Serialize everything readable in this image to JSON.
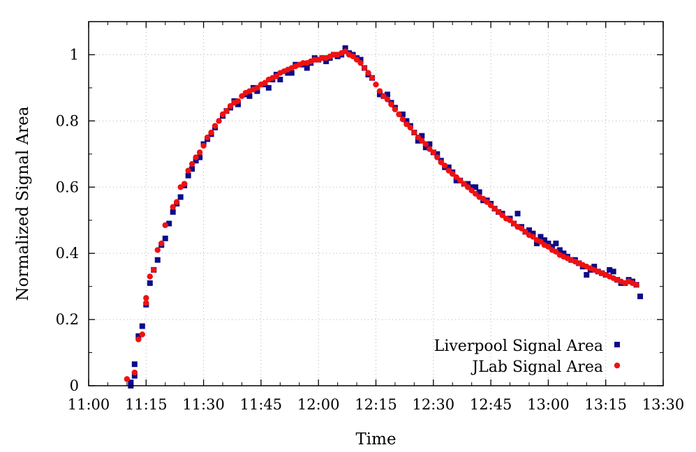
{
  "chart_data": {
    "type": "scatter",
    "xlabel": "Time",
    "ylabel": "Normalized Signal Area",
    "x_ticks": [
      "11:00",
      "11:15",
      "11:30",
      "11:45",
      "12:00",
      "12:15",
      "12:30",
      "12:45",
      "13:00",
      "13:15",
      "13:30"
    ],
    "y_ticks": [
      "0",
      "0.2",
      "0.4",
      "0.6",
      "0.8",
      "1"
    ],
    "xlim": [
      "11:00",
      "13:30"
    ],
    "ylim": [
      0,
      1.1
    ],
    "grid": true,
    "legend_position": "bottom-right",
    "series": [
      {
        "name": "Liverpool Signal Area",
        "marker": "square",
        "color": "#0b0b8a",
        "points": [
          [
            "11:11",
            0.01
          ],
          [
            "11:11",
            0.0
          ],
          [
            "11:12",
            0.03
          ],
          [
            "11:12",
            0.065
          ],
          [
            "11:13",
            0.15
          ],
          [
            "11:14",
            0.18
          ],
          [
            "11:15",
            0.245
          ],
          [
            "11:16",
            0.31
          ],
          [
            "11:17",
            0.35
          ],
          [
            "11:18",
            0.38
          ],
          [
            "11:19",
            0.425
          ],
          [
            "11:20",
            0.445
          ],
          [
            "11:21",
            0.49
          ],
          [
            "11:22",
            0.525
          ],
          [
            "11:23",
            0.55
          ],
          [
            "11:24",
            0.57
          ],
          [
            "11:25",
            0.605
          ],
          [
            "11:26",
            0.635
          ],
          [
            "11:27",
            0.655
          ],
          [
            "11:28",
            0.68
          ],
          [
            "11:29",
            0.69
          ],
          [
            "11:30",
            0.73
          ],
          [
            "11:31",
            0.745
          ],
          [
            "11:32",
            0.76
          ],
          [
            "11:33",
            0.78
          ],
          [
            "11:35",
            0.815
          ],
          [
            "11:36",
            0.83
          ],
          [
            "11:37",
            0.84
          ],
          [
            "11:38",
            0.86
          ],
          [
            "11:39",
            0.85
          ],
          [
            "11:41",
            0.88
          ],
          [
            "11:42",
            0.875
          ],
          [
            "11:43",
            0.9
          ],
          [
            "11:44",
            0.89
          ],
          [
            "11:46",
            0.91
          ],
          [
            "11:47",
            0.9
          ],
          [
            "11:48",
            0.925
          ],
          [
            "11:49",
            0.94
          ],
          [
            "11:50",
            0.925
          ],
          [
            "11:52",
            0.945
          ],
          [
            "11:53",
            0.945
          ],
          [
            "11:54",
            0.97
          ],
          [
            "11:56",
            0.97
          ],
          [
            "11:57",
            0.96
          ],
          [
            "11:58",
            0.975
          ],
          [
            "11:59",
            0.99
          ],
          [
            "12:00",
            0.985
          ],
          [
            "12:01",
            0.99
          ],
          [
            "12:02",
            0.98
          ],
          [
            "12:03",
            0.99
          ],
          [
            "12:04",
            1.0
          ],
          [
            "12:05",
            0.995
          ],
          [
            "12:06",
            1.0
          ],
          [
            "12:07",
            1.02
          ],
          [
            "12:08",
            1.005
          ],
          [
            "12:09",
            1.0
          ],
          [
            "12:10",
            0.99
          ],
          [
            "12:11",
            0.985
          ],
          [
            "12:12",
            0.96
          ],
          [
            "12:13",
            0.94
          ],
          [
            "12:14",
            0.93
          ],
          [
            "12:16",
            0.88
          ],
          [
            "12:17",
            0.875
          ],
          [
            "12:18",
            0.88
          ],
          [
            "12:19",
            0.855
          ],
          [
            "12:20",
            0.84
          ],
          [
            "12:22",
            0.82
          ],
          [
            "12:23",
            0.8
          ],
          [
            "12:24",
            0.785
          ],
          [
            "12:25",
            0.765
          ],
          [
            "12:26",
            0.74
          ],
          [
            "12:27",
            0.755
          ],
          [
            "12:28",
            0.72
          ],
          [
            "12:29",
            0.73
          ],
          [
            "12:30",
            0.705
          ],
          [
            "12:31",
            0.7
          ],
          [
            "12:32",
            0.68
          ],
          [
            "12:33",
            0.66
          ],
          [
            "12:34",
            0.66
          ],
          [
            "12:35",
            0.645
          ],
          [
            "12:36",
            0.62
          ],
          [
            "12:37",
            0.62
          ],
          [
            "12:38",
            0.61
          ],
          [
            "12:39",
            0.61
          ],
          [
            "12:40",
            0.6
          ],
          [
            "12:41",
            0.6
          ],
          [
            "12:42",
            0.585
          ],
          [
            "12:43",
            0.56
          ],
          [
            "12:44",
            0.56
          ],
          [
            "12:45",
            0.55
          ],
          [
            "12:46",
            0.535
          ],
          [
            "12:47",
            0.525
          ],
          [
            "12:48",
            0.52
          ],
          [
            "12:50",
            0.505
          ],
          [
            "12:51",
            0.49
          ],
          [
            "12:52",
            0.52
          ],
          [
            "12:53",
            0.48
          ],
          [
            "12:54",
            0.465
          ],
          [
            "12:55",
            0.47
          ],
          [
            "12:56",
            0.46
          ],
          [
            "12:57",
            0.43
          ],
          [
            "12:58",
            0.45
          ],
          [
            "12:59",
            0.44
          ],
          [
            "13:00",
            0.43
          ],
          [
            "13:01",
            0.42
          ],
          [
            "13:02",
            0.43
          ],
          [
            "13:03",
            0.41
          ],
          [
            "13:04",
            0.4
          ],
          [
            "13:05",
            0.39
          ],
          [
            "13:06",
            0.38
          ],
          [
            "13:07",
            0.38
          ],
          [
            "13:08",
            0.37
          ],
          [
            "13:09",
            0.36
          ],
          [
            "13:10",
            0.335
          ],
          [
            "13:11",
            0.35
          ],
          [
            "13:12",
            0.36
          ],
          [
            "13:13",
            0.345
          ],
          [
            "13:14",
            0.34
          ],
          [
            "13:15",
            0.335
          ],
          [
            "13:16",
            0.35
          ],
          [
            "13:17",
            0.345
          ],
          [
            "13:18",
            0.32
          ],
          [
            "13:19",
            0.31
          ],
          [
            "13:20",
            0.31
          ],
          [
            "13:21",
            0.32
          ],
          [
            "13:22",
            0.315
          ],
          [
            "13:23",
            0.305
          ],
          [
            "13:24",
            0.27
          ]
        ]
      },
      {
        "name": "JLab Signal Area",
        "marker": "circle",
        "color": "#ee1111",
        "points": [
          [
            "11:10",
            0.02
          ],
          [
            "11:12",
            0.04
          ],
          [
            "11:13",
            0.14
          ],
          [
            "11:14",
            0.155
          ],
          [
            "11:15",
            0.25
          ],
          [
            "11:15",
            0.265
          ],
          [
            "11:16",
            0.33
          ],
          [
            "11:17",
            0.35
          ],
          [
            "11:18",
            0.41
          ],
          [
            "11:19",
            0.43
          ],
          [
            "11:20",
            0.485
          ],
          [
            "11:22",
            0.54
          ],
          [
            "11:23",
            0.555
          ],
          [
            "11:24",
            0.6
          ],
          [
            "11:25",
            0.61
          ],
          [
            "11:26",
            0.65
          ],
          [
            "11:27",
            0.67
          ],
          [
            "11:28",
            0.69
          ],
          [
            "11:29",
            0.705
          ],
          [
            "11:30",
            0.725
          ],
          [
            "11:31",
            0.75
          ],
          [
            "11:32",
            0.765
          ],
          [
            "11:33",
            0.785
          ],
          [
            "11:34",
            0.8
          ],
          [
            "11:35",
            0.82
          ],
          [
            "11:36",
            0.83
          ],
          [
            "11:37",
            0.845
          ],
          [
            "11:38",
            0.855
          ],
          [
            "11:39",
            0.86
          ],
          [
            "11:40",
            0.875
          ],
          [
            "11:41",
            0.885
          ],
          [
            "11:42",
            0.89
          ],
          [
            "11:43",
            0.895
          ],
          [
            "11:44",
            0.9
          ],
          [
            "11:45",
            0.91
          ],
          [
            "11:46",
            0.915
          ],
          [
            "11:47",
            0.925
          ],
          [
            "11:48",
            0.93
          ],
          [
            "11:49",
            0.935
          ],
          [
            "11:50",
            0.945
          ],
          [
            "11:51",
            0.95
          ],
          [
            "11:52",
            0.955
          ],
          [
            "11:53",
            0.96
          ],
          [
            "11:54",
            0.965
          ],
          [
            "11:55",
            0.97
          ],
          [
            "11:56",
            0.975
          ],
          [
            "11:57",
            0.975
          ],
          [
            "11:58",
            0.98
          ],
          [
            "11:59",
            0.985
          ],
          [
            "12:00",
            0.985
          ],
          [
            "12:01",
            0.99
          ],
          [
            "12:02",
            0.99
          ],
          [
            "12:03",
            0.995
          ],
          [
            "12:04",
            1.0
          ],
          [
            "12:05",
            1.0
          ],
          [
            "12:06",
            1.005
          ],
          [
            "12:07",
            1.01
          ],
          [
            "12:08",
            1.0
          ],
          [
            "12:09",
            0.995
          ],
          [
            "12:10",
            0.985
          ],
          [
            "12:11",
            0.975
          ],
          [
            "12:12",
            0.96
          ],
          [
            "12:13",
            0.945
          ],
          [
            "12:14",
            0.93
          ],
          [
            "12:15",
            0.91
          ],
          [
            "12:16",
            0.89
          ],
          [
            "12:17",
            0.875
          ],
          [
            "12:18",
            0.865
          ],
          [
            "12:19",
            0.85
          ],
          [
            "12:20",
            0.835
          ],
          [
            "12:21",
            0.82
          ],
          [
            "12:22",
            0.805
          ],
          [
            "12:23",
            0.79
          ],
          [
            "12:24",
            0.78
          ],
          [
            "12:25",
            0.765
          ],
          [
            "12:26",
            0.75
          ],
          [
            "12:27",
            0.74
          ],
          [
            "12:28",
            0.73
          ],
          [
            "12:29",
            0.715
          ],
          [
            "12:30",
            0.705
          ],
          [
            "12:31",
            0.69
          ],
          [
            "12:32",
            0.675
          ],
          [
            "12:33",
            0.665
          ],
          [
            "12:34",
            0.65
          ],
          [
            "12:35",
            0.64
          ],
          [
            "12:36",
            0.63
          ],
          [
            "12:37",
            0.62
          ],
          [
            "12:38",
            0.61
          ],
          [
            "12:39",
            0.6
          ],
          [
            "12:40",
            0.59
          ],
          [
            "12:41",
            0.58
          ],
          [
            "12:42",
            0.57
          ],
          [
            "12:43",
            0.565
          ],
          [
            "12:44",
            0.555
          ],
          [
            "12:45",
            0.545
          ],
          [
            "12:46",
            0.535
          ],
          [
            "12:47",
            0.525
          ],
          [
            "12:48",
            0.515
          ],
          [
            "12:49",
            0.505
          ],
          [
            "12:50",
            0.5
          ],
          [
            "12:51",
            0.49
          ],
          [
            "12:52",
            0.48
          ],
          [
            "12:53",
            0.475
          ],
          [
            "12:54",
            0.465
          ],
          [
            "12:55",
            0.455
          ],
          [
            "12:56",
            0.45
          ],
          [
            "12:57",
            0.44
          ],
          [
            "12:58",
            0.435
          ],
          [
            "12:59",
            0.425
          ],
          [
            "13:00",
            0.42
          ],
          [
            "13:01",
            0.41
          ],
          [
            "13:02",
            0.405
          ],
          [
            "13:03",
            0.395
          ],
          [
            "13:04",
            0.39
          ],
          [
            "13:05",
            0.385
          ],
          [
            "13:06",
            0.38
          ],
          [
            "13:07",
            0.375
          ],
          [
            "13:08",
            0.37
          ],
          [
            "13:09",
            0.365
          ],
          [
            "13:10",
            0.36
          ],
          [
            "13:11",
            0.355
          ],
          [
            "13:12",
            0.35
          ],
          [
            "13:13",
            0.345
          ],
          [
            "13:14",
            0.34
          ],
          [
            "13:15",
            0.335
          ],
          [
            "13:16",
            0.33
          ],
          [
            "13:17",
            0.325
          ],
          [
            "13:18",
            0.32
          ],
          [
            "13:19",
            0.315
          ],
          [
            "13:20",
            0.31
          ],
          [
            "13:21",
            0.315
          ],
          [
            "13:22",
            0.31
          ],
          [
            "13:23",
            0.305
          ]
        ]
      }
    ]
  }
}
